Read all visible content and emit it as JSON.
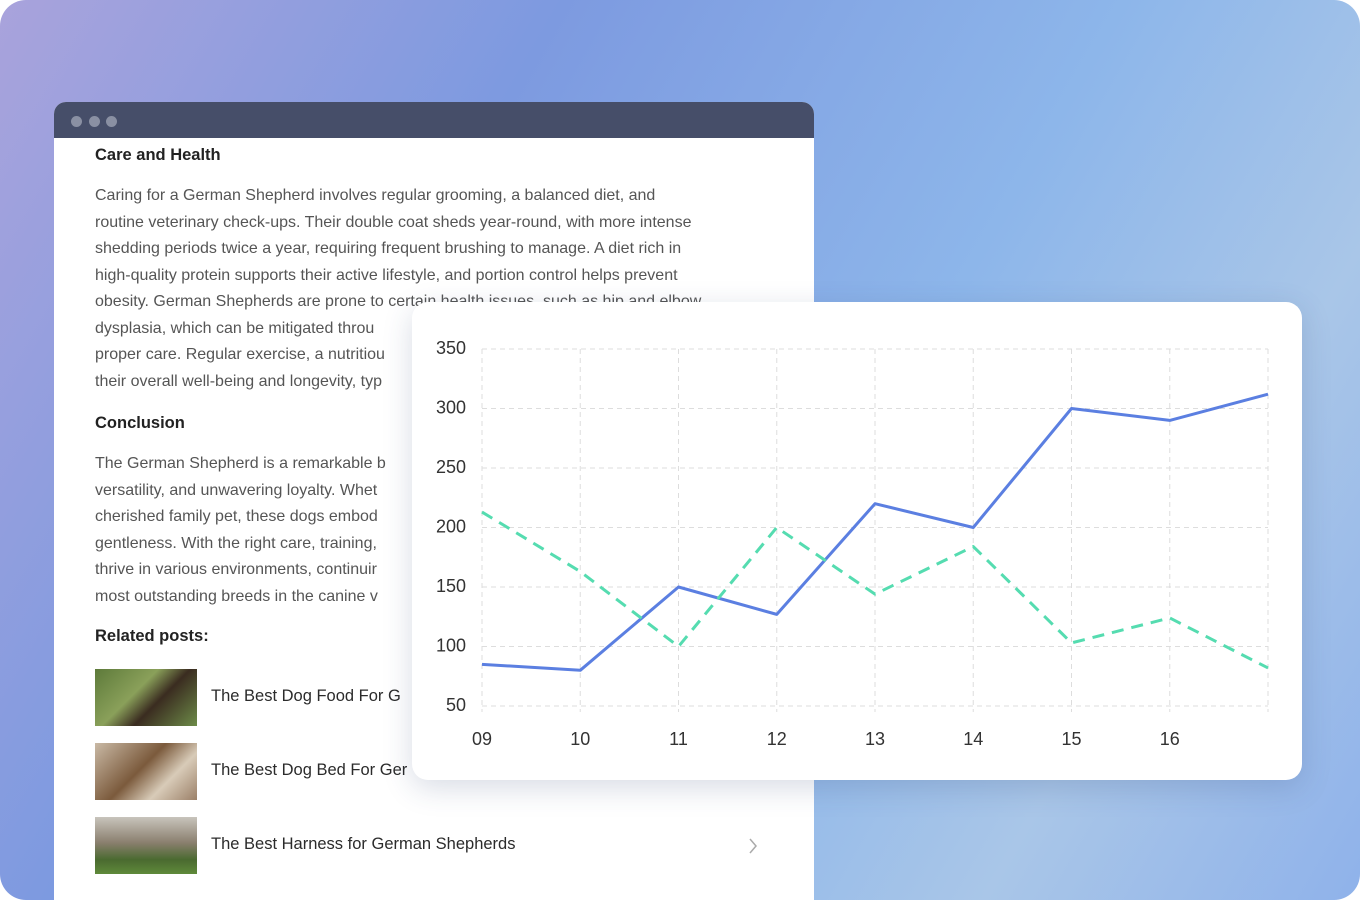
{
  "document": {
    "sections": [
      {
        "heading": "Care and Health",
        "lines": [
          "Caring for a German Shepherd involves regular grooming, a balanced diet, and",
          "routine veterinary check-ups. Their double coat sheds year-round, with more intense",
          "shedding periods twice a year, requiring frequent brushing to manage. A diet rich in",
          "high-quality protein supports their active lifestyle, and portion control helps prevent",
          "obesity. German Shepherds are prone to certain health issues, such as hip and elbow",
          "dysplasia, which can be mitigated throu",
          "proper care. Regular exercise, a nutritiou",
          "their overall well-being and longevity, typ"
        ]
      },
      {
        "heading": "Conclusion",
        "lines": [
          "The German Shepherd is a remarkable b",
          "versatility, and unwavering loyalty. Whet",
          "cherished family pet, these dogs embod",
          "gentleness. With the right care, training,",
          "thrive in various environments, continuir",
          "most outstanding breeds in the canine v"
        ]
      }
    ],
    "related": {
      "heading": "Related posts:",
      "posts": [
        "The Best Dog Food For G",
        "The Best Dog Bed For Ger",
        "The Best Harness for German Shepherds"
      ]
    }
  },
  "chart_data": {
    "type": "line",
    "categories": [
      "09",
      "10",
      "11",
      "12",
      "13",
      "14",
      "15",
      "16",
      null
    ],
    "series": [
      {
        "color": "#5b7fe1",
        "line_style": "solid",
        "values": [
          85,
          80,
          150,
          127,
          220,
          200,
          300,
          290,
          312
        ]
      },
      {
        "color": "#55dcb0",
        "line_style": "dashed",
        "values": [
          213,
          163,
          100,
          200,
          144,
          184,
          103,
          124,
          82
        ]
      }
    ],
    "ylim": [
      50,
      350
    ],
    "yticks": [
      50,
      100,
      150,
      200,
      250,
      300,
      350
    ],
    "grid": true
  }
}
